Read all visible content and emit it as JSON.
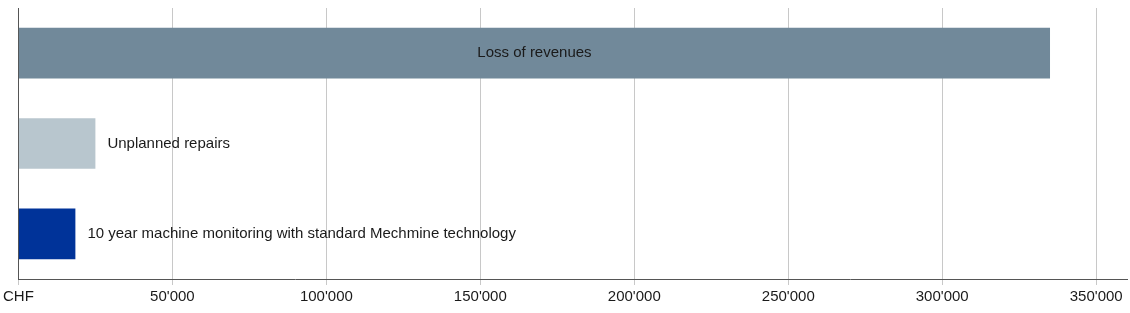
{
  "chart_data": {
    "type": "bar",
    "orientation": "horizontal",
    "categories": [
      "Loss of revenues",
      "Unplanned repairs",
      "10 year machine monitoring with standard Mechmine technology"
    ],
    "values": [
      335000,
      25000,
      18500
    ],
    "colors": [
      "#71899a",
      "#b8c6ce",
      "#003399"
    ],
    "xlim": [
      0,
      360000
    ],
    "xticks": [
      {
        "value": 0,
        "label": "CHF"
      },
      {
        "value": 50000,
        "label": "50'000"
      },
      {
        "value": 100000,
        "label": "100'000"
      },
      {
        "value": 150000,
        "label": "150'000"
      },
      {
        "value": 200000,
        "label": "200'000"
      },
      {
        "value": 250000,
        "label": "250'000"
      },
      {
        "value": 300000,
        "label": "300'000"
      },
      {
        "value": 350000,
        "label": "350'000"
      }
    ],
    "grid": true,
    "tick_labels": "x"
  }
}
